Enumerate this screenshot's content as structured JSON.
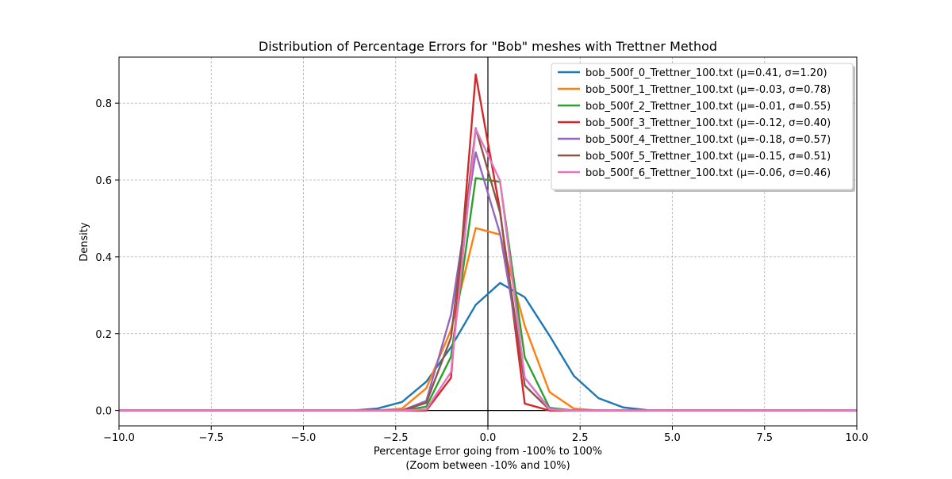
{
  "chart_data": {
    "type": "line",
    "title": "Distribution of Percentage Errors for \"Bob\" meshes with Trettner Method",
    "xlabel_line1": "Percentage Error going from -100% to 100%",
    "xlabel_line2": "(Zoom between -10% and 10%)",
    "ylabel": "Density",
    "xlim": [
      -10,
      10
    ],
    "ylim": [
      -0.04,
      0.92
    ],
    "xticks": [
      -10,
      -7.5,
      -5,
      -2.5,
      0,
      2.5,
      5,
      7.5,
      10
    ],
    "xtick_labels": [
      "−10.0",
      "−7.5",
      "−5.0",
      "−2.5",
      "0.0",
      "2.5",
      "5.0",
      "7.5",
      "10.0"
    ],
    "yticks": [
      0,
      0.2,
      0.4,
      0.6,
      0.8
    ],
    "ytick_labels": [
      "0.0",
      "0.2",
      "0.4",
      "0.6",
      "0.8"
    ],
    "grid": true,
    "legend_position": "top-right",
    "reference_lines": {
      "x": 0,
      "y": 0
    },
    "x": [
      -10,
      -3.67,
      -3.0,
      -2.33,
      -1.67,
      -1.0,
      -0.33,
      0.33,
      1.0,
      1.67,
      2.33,
      3.0,
      3.67,
      4.33,
      10
    ],
    "series": [
      {
        "name": "bob_500f_0_Trettner_100.txt (μ=0.41, σ=1.20)",
        "color": "#1f77b4",
        "values": [
          0,
          0,
          0.005,
          0.022,
          0.075,
          0.165,
          0.275,
          0.332,
          0.295,
          0.195,
          0.09,
          0.032,
          0.008,
          0.001,
          0
        ]
      },
      {
        "name": "bob_500f_1_Trettner_100.txt (μ=-0.03, σ=0.78)",
        "color": "#ff7f0e",
        "values": [
          0,
          0,
          0,
          0.005,
          0.058,
          0.21,
          0.475,
          0.458,
          0.22,
          0.048,
          0.005,
          0,
          0,
          0,
          0
        ]
      },
      {
        "name": "bob_500f_2_Trettner_100.txt (μ=-0.01, σ=0.55)",
        "color": "#2ca02c",
        "values": [
          0,
          0,
          0,
          0,
          0.01,
          0.14,
          0.605,
          0.595,
          0.138,
          0.007,
          0,
          0,
          0,
          0,
          0
        ]
      },
      {
        "name": "bob_500f_3_Trettner_100.txt (μ=-0.12, σ=0.40)",
        "color": "#d62728",
        "values": [
          0,
          0,
          0,
          0,
          0,
          0.085,
          0.875,
          0.52,
          0.018,
          0,
          0,
          0,
          0,
          0,
          0
        ]
      },
      {
        "name": "bob_500f_4_Trettner_100.txt (μ=-0.18, σ=0.57)",
        "color": "#9467bd",
        "values": [
          0,
          0,
          0,
          0,
          0.025,
          0.25,
          0.672,
          0.46,
          0.085,
          0.005,
          0,
          0,
          0,
          0,
          0
        ]
      },
      {
        "name": "bob_500f_5_Trettner_100.txt (μ=-0.15, σ=0.51)",
        "color": "#8c564b",
        "values": [
          0,
          0,
          0,
          0,
          0.02,
          0.19,
          0.735,
          0.515,
          0.065,
          0.002,
          0,
          0,
          0,
          0,
          0
        ]
      },
      {
        "name": "bob_500f_6_Trettner_100.txt (μ=-0.06, σ=0.46)",
        "color": "#e377c2",
        "values": [
          0,
          0,
          0,
          0,
          0.003,
          0.1,
          0.733,
          0.598,
          0.085,
          0.003,
          0,
          0,
          0,
          0,
          0
        ]
      }
    ]
  }
}
